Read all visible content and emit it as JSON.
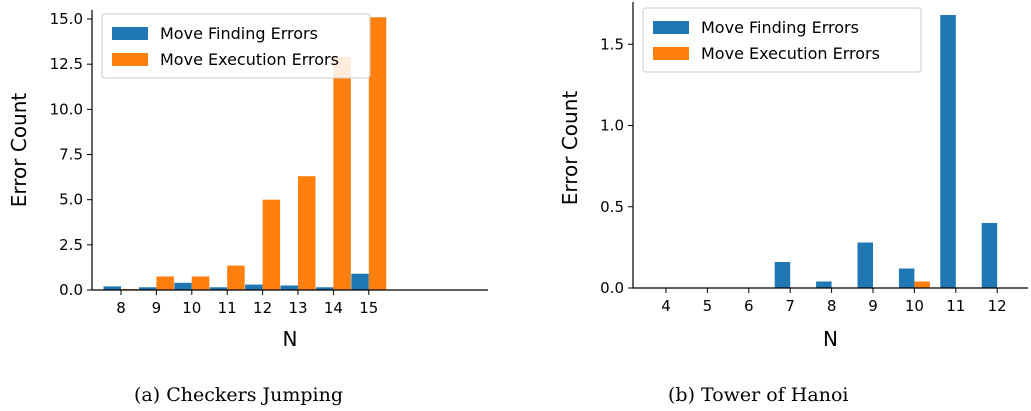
{
  "colors": {
    "series1": "#1f77b4",
    "series2": "#ff7f0e"
  },
  "captions": {
    "a": "(a) Checkers Jumping",
    "b": "(b) Tower of Hanoi"
  },
  "chart_data": [
    {
      "type": "bar",
      "title": "",
      "xlabel": "N",
      "ylabel": "Error Count",
      "categories": [
        "8",
        "9",
        "10",
        "11",
        "12",
        "13",
        "14",
        "15"
      ],
      "ylim": [
        0,
        15.5
      ],
      "yticks": [
        "0.0",
        "2.5",
        "5.0",
        "7.5",
        "10.0",
        "12.5",
        "15.0"
      ],
      "legend_placement": "top-left",
      "series": [
        {
          "name": "Move Finding Errors",
          "values": [
            0.2,
            0.15,
            0.4,
            0.15,
            0.3,
            0.25,
            0.15,
            0.9
          ]
        },
        {
          "name": "Move Execution Errors",
          "values": [
            0.05,
            0.75,
            0.75,
            1.35,
            5.0,
            6.3,
            12.9,
            15.1
          ]
        }
      ]
    },
    {
      "type": "bar",
      "title": "",
      "xlabel": "N",
      "ylabel": "Error Count",
      "categories": [
        "4",
        "5",
        "6",
        "7",
        "8",
        "9",
        "10",
        "11",
        "12"
      ],
      "ylim": [
        0,
        1.76
      ],
      "yticks": [
        "0.0",
        "0.5",
        "1.0",
        "1.5"
      ],
      "legend_placement": "top-left",
      "series": [
        {
          "name": "Move Finding Errors",
          "values": [
            0,
            0,
            0,
            0.16,
            0.04,
            0.28,
            0.12,
            1.68,
            0.4
          ]
        },
        {
          "name": "Move Execution Errors",
          "values": [
            0,
            0,
            0,
            0,
            0,
            0,
            0.04,
            0,
            0
          ]
        }
      ]
    }
  ]
}
